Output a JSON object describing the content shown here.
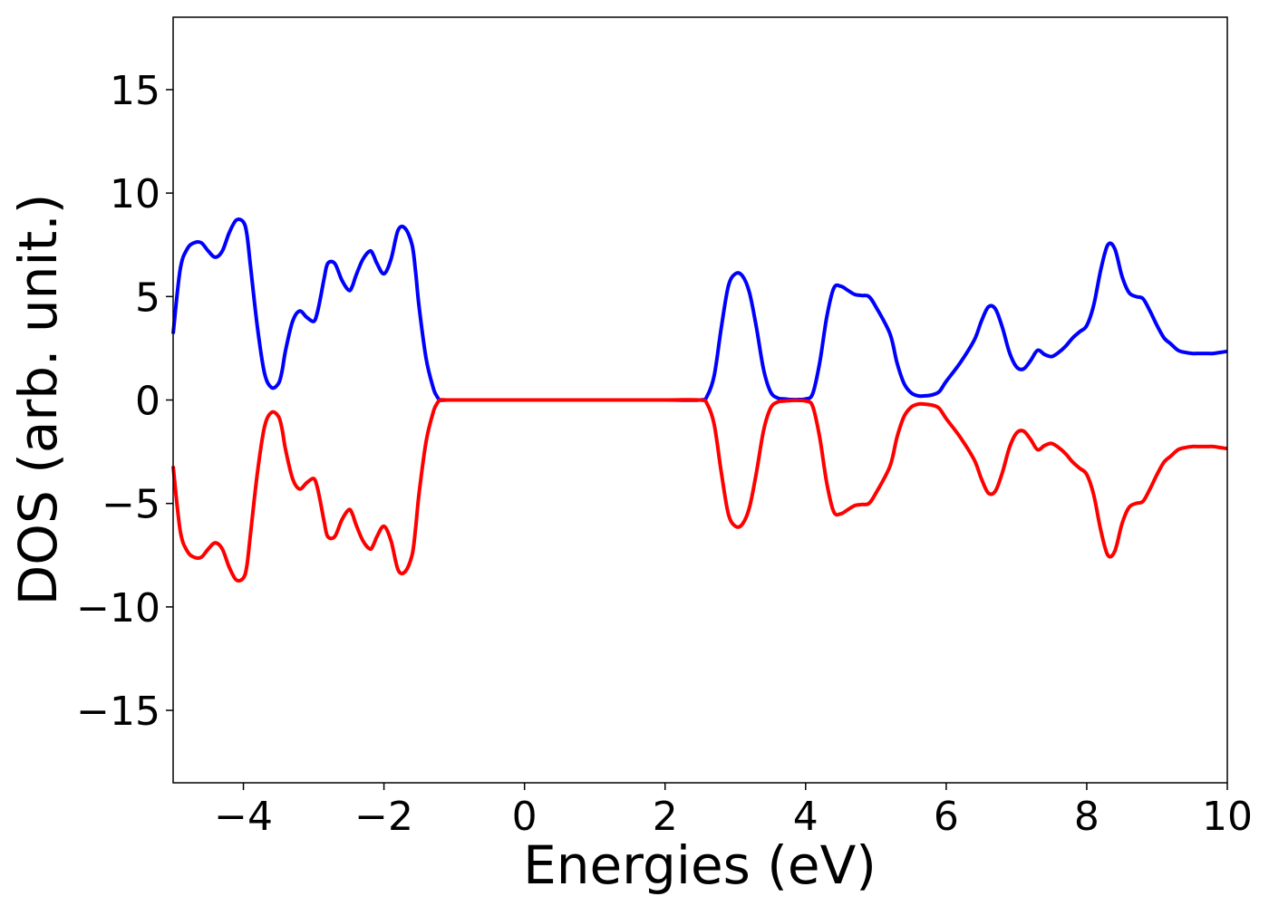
{
  "chart_data": {
    "type": "line",
    "title": "",
    "xlabel": "Energies (eV)",
    "ylabel": "DOS (arb. unit.)",
    "xlim": [
      -5,
      10
    ],
    "ylim": [
      -18.5,
      18.5
    ],
    "xticks": [
      -4,
      -2,
      0,
      2,
      4,
      6,
      8,
      10
    ],
    "xtick_labels": [
      "−4",
      "−2",
      "0",
      "2",
      "4",
      "6",
      "8",
      "10"
    ],
    "yticks": [
      15,
      10,
      5,
      0,
      -5,
      -10,
      -15
    ],
    "ytick_labels": [
      "15",
      "10",
      "5",
      "0",
      "−5",
      "−10",
      "−15"
    ],
    "grid": false,
    "legend": "none",
    "series": [
      {
        "color": "#0000ff",
        "x": [
          -5.0,
          -4.9,
          -4.8,
          -4.7,
          -4.6,
          -4.5,
          -4.4,
          -4.3,
          -4.2,
          -4.1,
          -4.0,
          -3.95,
          -3.9,
          -3.8,
          -3.7,
          -3.6,
          -3.5,
          -3.45,
          -3.4,
          -3.3,
          -3.2,
          -3.1,
          -3.0,
          -2.95,
          -2.9,
          -2.85,
          -2.8,
          -2.7,
          -2.6,
          -2.5,
          -2.45,
          -2.4,
          -2.3,
          -2.2,
          -2.15,
          -2.1,
          -2.0,
          -1.9,
          -1.8,
          -1.7,
          -1.6,
          -1.55,
          -1.5,
          -1.4,
          -1.3,
          -1.25,
          -1.2,
          -1.1,
          -1.0,
          -0.9,
          -0.8,
          -0.7,
          -0.6,
          -0.5,
          0.0,
          1.0,
          2.0,
          2.5,
          2.6,
          2.7,
          2.8,
          2.9,
          3.0,
          3.1,
          3.2,
          3.3,
          3.4,
          3.5,
          3.6,
          3.7,
          3.8,
          3.9,
          4.0,
          4.1,
          4.2,
          4.3,
          4.4,
          4.5,
          4.6,
          4.7,
          4.8,
          4.9,
          5.0,
          5.2,
          5.3,
          5.4,
          5.5,
          5.6,
          5.7,
          5.8,
          5.9,
          6.0,
          6.2,
          6.4,
          6.5,
          6.6,
          6.7,
          6.8,
          6.9,
          7.0,
          7.1,
          7.2,
          7.3,
          7.4,
          7.5,
          7.6,
          7.7,
          7.8,
          7.9,
          8.0,
          8.1,
          8.2,
          8.3,
          8.4,
          8.5,
          8.6,
          8.7,
          8.8,
          8.9,
          9.0,
          9.1,
          9.2,
          9.3,
          9.4,
          9.5,
          9.6,
          9.7,
          9.8,
          9.9,
          10.0
        ],
        "y": [
          3.2,
          6.3,
          7.3,
          7.6,
          7.6,
          7.2,
          6.9,
          7.2,
          8.1,
          8.7,
          8.6,
          8.0,
          6.5,
          3.5,
          1.3,
          0.6,
          0.8,
          1.4,
          2.4,
          3.8,
          4.3,
          4.0,
          3.8,
          4.2,
          5.0,
          5.9,
          6.6,
          6.6,
          5.8,
          5.3,
          5.5,
          6.0,
          6.8,
          7.2,
          7.0,
          6.6,
          6.1,
          6.8,
          8.2,
          8.3,
          7.5,
          6.2,
          4.5,
          2.0,
          0.6,
          0.2,
          0.0,
          0.0,
          0.0,
          0.0,
          0.0,
          0.0,
          0.0,
          0.0,
          0.0,
          0.0,
          0.0,
          0.0,
          0.2,
          1.2,
          3.5,
          5.5,
          6.1,
          6.0,
          5.2,
          3.5,
          1.5,
          0.4,
          0.1,
          0.05,
          0.02,
          0.02,
          0.05,
          0.3,
          1.8,
          4.0,
          5.4,
          5.5,
          5.3,
          5.1,
          5.05,
          5.0,
          4.5,
          3.2,
          1.8,
          0.8,
          0.35,
          0.2,
          0.2,
          0.25,
          0.4,
          0.9,
          1.8,
          2.9,
          3.8,
          4.5,
          4.4,
          3.5,
          2.3,
          1.6,
          1.5,
          1.9,
          2.4,
          2.2,
          2.1,
          2.3,
          2.6,
          3.0,
          3.3,
          3.6,
          4.6,
          6.3,
          7.5,
          7.3,
          6.0,
          5.2,
          5.0,
          4.9,
          4.3,
          3.6,
          3.0,
          2.7,
          2.4,
          2.3,
          2.25,
          2.25,
          2.25,
          2.25,
          2.3,
          2.35
        ]
      },
      {
        "color": "#ff0000",
        "x": [
          -5.0,
          -4.9,
          -4.8,
          -4.7,
          -4.6,
          -4.5,
          -4.4,
          -4.3,
          -4.2,
          -4.1,
          -4.0,
          -3.95,
          -3.9,
          -3.8,
          -3.7,
          -3.6,
          -3.5,
          -3.45,
          -3.4,
          -3.3,
          -3.2,
          -3.1,
          -3.0,
          -2.95,
          -2.9,
          -2.85,
          -2.8,
          -2.7,
          -2.6,
          -2.5,
          -2.45,
          -2.4,
          -2.3,
          -2.2,
          -2.15,
          -2.1,
          -2.0,
          -1.9,
          -1.8,
          -1.7,
          -1.6,
          -1.55,
          -1.5,
          -1.4,
          -1.3,
          -1.25,
          -1.2,
          -1.1,
          -1.0,
          -0.9,
          -0.8,
          -0.7,
          -0.6,
          -0.5,
          0.0,
          1.0,
          2.0,
          2.5,
          2.6,
          2.7,
          2.8,
          2.9,
          3.0,
          3.1,
          3.2,
          3.3,
          3.4,
          3.5,
          3.6,
          3.7,
          3.8,
          3.9,
          4.0,
          4.1,
          4.2,
          4.3,
          4.4,
          4.5,
          4.6,
          4.7,
          4.8,
          4.9,
          5.0,
          5.2,
          5.3,
          5.4,
          5.5,
          5.6,
          5.7,
          5.8,
          5.9,
          6.0,
          6.2,
          6.4,
          6.5,
          6.6,
          6.7,
          6.8,
          6.9,
          7.0,
          7.1,
          7.2,
          7.3,
          7.4,
          7.5,
          7.6,
          7.7,
          7.8,
          7.9,
          8.0,
          8.1,
          8.2,
          8.3,
          8.4,
          8.5,
          8.6,
          8.7,
          8.8,
          8.9,
          9.0,
          9.1,
          9.2,
          9.3,
          9.4,
          9.5,
          9.6,
          9.7,
          9.8,
          9.9,
          10.0
        ],
        "y": [
          -3.2,
          -6.3,
          -7.3,
          -7.6,
          -7.6,
          -7.2,
          -6.9,
          -7.2,
          -8.1,
          -8.7,
          -8.6,
          -8.0,
          -6.5,
          -3.5,
          -1.3,
          -0.6,
          -0.8,
          -1.4,
          -2.4,
          -3.8,
          -4.3,
          -4.0,
          -3.8,
          -4.2,
          -5.0,
          -5.9,
          -6.6,
          -6.6,
          -5.8,
          -5.3,
          -5.5,
          -6.0,
          -6.8,
          -7.2,
          -7.0,
          -6.6,
          -6.1,
          -6.8,
          -8.2,
          -8.3,
          -7.5,
          -6.2,
          -4.5,
          -2.0,
          -0.6,
          -0.2,
          0.0,
          0.0,
          0.0,
          0.0,
          0.0,
          0.0,
          0.0,
          0.0,
          0.0,
          0.0,
          0.0,
          0.0,
          -0.2,
          -1.2,
          -3.5,
          -5.5,
          -6.1,
          -6.0,
          -5.2,
          -3.5,
          -1.5,
          -0.4,
          -0.1,
          -0.05,
          -0.02,
          -0.02,
          -0.05,
          -0.3,
          -1.8,
          -4.0,
          -5.4,
          -5.5,
          -5.3,
          -5.1,
          -5.05,
          -5.0,
          -4.5,
          -3.2,
          -1.8,
          -0.8,
          -0.35,
          -0.2,
          -0.2,
          -0.25,
          -0.4,
          -0.9,
          -1.8,
          -2.9,
          -3.8,
          -4.5,
          -4.4,
          -3.5,
          -2.3,
          -1.6,
          -1.5,
          -1.9,
          -2.4,
          -2.2,
          -2.1,
          -2.3,
          -2.6,
          -3.0,
          -3.3,
          -3.6,
          -4.6,
          -6.3,
          -7.5,
          -7.3,
          -6.0,
          -5.2,
          -5.0,
          -4.9,
          -4.3,
          -3.6,
          -3.0,
          -2.7,
          -2.4,
          -2.3,
          -2.25,
          -2.25,
          -2.25,
          -2.25,
          -2.3,
          -2.35
        ]
      }
    ]
  }
}
